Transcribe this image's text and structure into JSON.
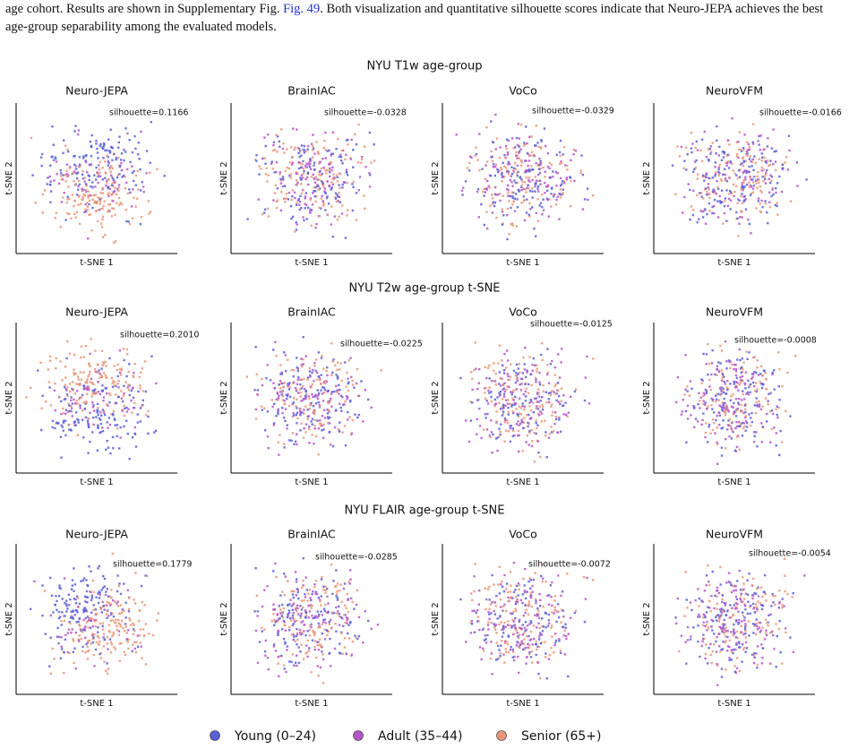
{
  "paragraph": {
    "before": "age cohort. Results are shown in Supplementary Fig. ",
    "link": "Fig. 49",
    "after": ". Both visualization and quantitative silhouette scores indicate that Neuro-JEPA achieves the best age-group separability among the evaluated models."
  },
  "figure": {
    "x_label": "t-SNE 1",
    "y_label": "t-SNE 2",
    "rows": [
      {
        "title": "NYU T1w age-group",
        "panels": [
          {
            "model": "Neuro-JEPA",
            "silhouette": "silhouette=0.1166"
          },
          {
            "model": "BrainIAC",
            "silhouette": "silhouette=-0.0328"
          },
          {
            "model": "VoCo",
            "silhouette": "silhouette=-0.0329"
          },
          {
            "model": "NeuroVFM",
            "silhouette": "silhouette=-0.0166"
          }
        ]
      },
      {
        "title": "NYU T2w age-group t-SNE",
        "panels": [
          {
            "model": "Neuro-JEPA",
            "silhouette": "silhouette=0.2010"
          },
          {
            "model": "BrainIAC",
            "silhouette": "silhouette=-0.0225"
          },
          {
            "model": "VoCo",
            "silhouette": "silhouette=-0.0125"
          },
          {
            "model": "NeuroVFM",
            "silhouette": "silhouette=-0.0008"
          }
        ]
      },
      {
        "title": "NYU FLAIR age-group t-SNE",
        "panels": [
          {
            "model": "Neuro-JEPA",
            "silhouette": "silhouette=0.1779"
          },
          {
            "model": "BrainIAC",
            "silhouette": "silhouette=-0.0285"
          },
          {
            "model": "VoCo",
            "silhouette": "silhouette=-0.0072"
          },
          {
            "model": "NeuroVFM",
            "silhouette": "silhouette=-0.0054"
          }
        ]
      }
    ],
    "legend": [
      {
        "label": "Young (0–24)",
        "color": "#5a5fd6"
      },
      {
        "label": "Adult (35–44)",
        "color": "#b455c8"
      },
      {
        "label": "Senior (65+)",
        "color": "#e8967a"
      }
    ]
  }
}
